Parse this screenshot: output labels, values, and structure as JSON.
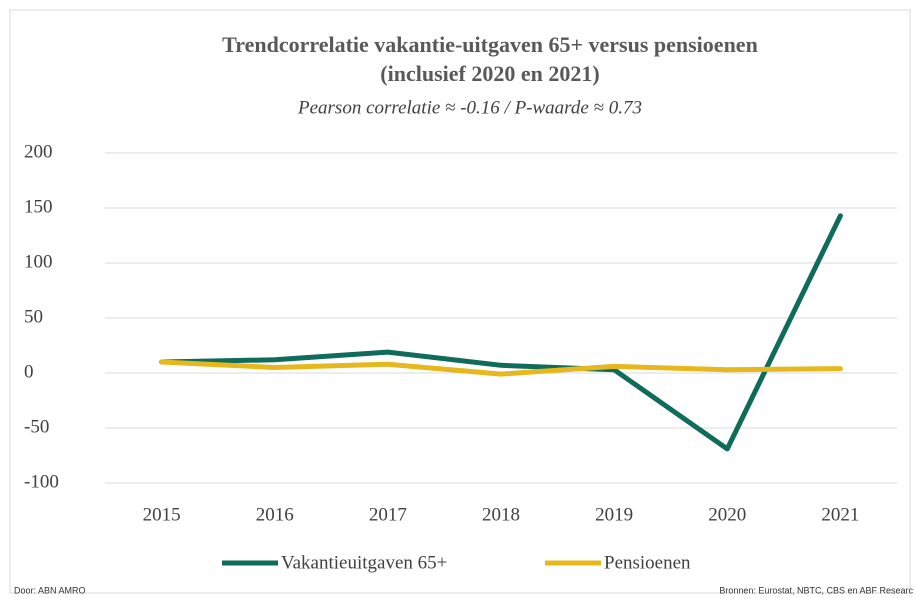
{
  "chart_data": {
    "type": "line",
    "title": [
      "Trendcorrelatie vakantie-uitgaven 65+ versus pensioenen",
      "(inclusief 2020 en 2021)"
    ],
    "subtitle": "Pearson correlatie ≈ -0.16 /  P-waarde ≈  0.73",
    "categories": [
      "2015",
      "2016",
      "2017",
      "2018",
      "2019",
      "2020",
      "2021"
    ],
    "series": [
      {
        "name": "Vakantieuitgaven 65+",
        "color": "#0f6b5a",
        "values": [
          10,
          12,
          19,
          7,
          3,
          -69,
          143
        ]
      },
      {
        "name": "Pensioenen",
        "color": "#e6b81e",
        "values": [
          10,
          5,
          8,
          -1,
          6,
          3,
          4
        ]
      }
    ],
    "ylim": [
      -100,
      200
    ],
    "yticks": [
      -100,
      -50,
      0,
      50,
      100,
      150,
      200
    ],
    "grid": true,
    "legend": "bottom",
    "source_left": "Door: ABN AMRO",
    "source_right": "Bronnen: Eurostat, NBTC, CBS en ABF Researc"
  }
}
